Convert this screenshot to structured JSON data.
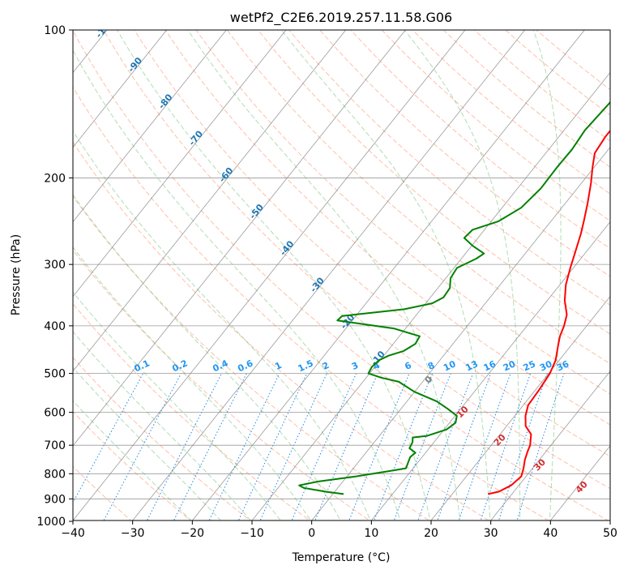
{
  "chart_data": {
    "type": "line",
    "title": "wetPf2_C2E6.2019.257.11.58.G06",
    "xlabel": "Temperature (°C)",
    "ylabel": "Pressure (hPa)",
    "xlim": [
      -40,
      50
    ],
    "ylim": [
      1050,
      100
    ],
    "y_scale": "log",
    "x_ticks": [
      -40,
      -30,
      -20,
      -10,
      0,
      10,
      20,
      30,
      40,
      50
    ],
    "y_ticks": [
      100,
      200,
      300,
      400,
      500,
      600,
      700,
      800,
      900,
      1000
    ],
    "grid": true,
    "series": [
      {
        "color": "#ff0000",
        "points": [
          [
            26,
            880
          ],
          [
            27.5,
            870
          ],
          [
            28.7,
            845
          ],
          [
            29.2,
            810
          ],
          [
            28.5,
            780
          ],
          [
            27.6,
            750
          ],
          [
            26.9,
            720
          ],
          [
            26.5,
            700
          ],
          [
            25.2,
            665
          ],
          [
            23.2,
            640
          ],
          [
            21.8,
            610
          ],
          [
            20.8,
            580
          ],
          [
            20.6,
            540
          ],
          [
            20.2,
            500
          ],
          [
            19.4,
            470
          ],
          [
            17.9,
            440
          ],
          [
            16.9,
            420
          ],
          [
            16.2,
            400
          ],
          [
            15.2,
            380
          ],
          [
            12.9,
            355
          ],
          [
            11,
            330
          ],
          [
            9.5,
            305
          ],
          [
            8,
            280
          ],
          [
            6.7,
            260
          ],
          [
            5.5,
            245
          ],
          [
            3.7,
            225
          ],
          [
            1.6,
            205
          ],
          [
            -0.3,
            190
          ],
          [
            -1.8,
            178
          ],
          [
            -2.2,
            165
          ],
          [
            -2.2,
            150
          ],
          [
            -3,
            140
          ],
          [
            -3.5,
            130
          ],
          [
            -3.3,
            120
          ],
          [
            -2.6,
            112
          ],
          [
            -1.2,
            105
          ],
          [
            0.4,
            100
          ]
        ]
      },
      {
        "color": "#008000",
        "points": [
          [
            1.8,
            880
          ],
          [
            -1.6,
            870
          ],
          [
            -5.7,
            855
          ],
          [
            -6.8,
            845
          ],
          [
            -4.2,
            830
          ],
          [
            1.5,
            810
          ],
          [
            6.4,
            790
          ],
          [
            8.8,
            780
          ],
          [
            8.5,
            765
          ],
          [
            8,
            740
          ],
          [
            8.3,
            725
          ],
          [
            6.7,
            710
          ],
          [
            6.4,
            690
          ],
          [
            5.8,
            675
          ],
          [
            8,
            670
          ],
          [
            10.4,
            650
          ],
          [
            11,
            630
          ],
          [
            10.3,
            610
          ],
          [
            7.8,
            590
          ],
          [
            5,
            570
          ],
          [
            0,
            545
          ],
          [
            -4,
            520
          ],
          [
            -7.5,
            510
          ],
          [
            -10.2,
            500
          ],
          [
            -10.5,
            485
          ],
          [
            -10.2,
            470
          ],
          [
            -9.2,
            460
          ],
          [
            -7.3,
            450
          ],
          [
            -6.3,
            435
          ],
          [
            -6.6,
            420
          ],
          [
            -12,
            405
          ],
          [
            -22.5,
            390
          ],
          [
            -22.3,
            382
          ],
          [
            -12.8,
            370
          ],
          [
            -8.9,
            360
          ],
          [
            -7.8,
            350
          ],
          [
            -8,
            335
          ],
          [
            -9.2,
            320
          ],
          [
            -9.5,
            305
          ],
          [
            -7.5,
            292
          ],
          [
            -6.9,
            285
          ],
          [
            -9.8,
            275
          ],
          [
            -12.3,
            265
          ],
          [
            -12,
            255
          ],
          [
            -8.8,
            245
          ],
          [
            -6.8,
            230
          ],
          [
            -6.1,
            210
          ],
          [
            -6.2,
            190
          ],
          [
            -6.1,
            175
          ],
          [
            -6.5,
            160
          ],
          [
            -6,
            140
          ],
          [
            -5,
            125
          ],
          [
            -4.5,
            115
          ],
          [
            -3.2,
            105
          ],
          [
            -2,
            100
          ]
        ]
      }
    ],
    "isotherm_dry_adiabat_labels": [
      "-100",
      "-90",
      "-80",
      "-70",
      "-60",
      "-50",
      "-40",
      "-30",
      "-20",
      "-10"
    ],
    "mixing_ratio_labels": [
      "0.1",
      "0.2",
      "0.4",
      "0.6",
      "1",
      "1.5",
      "2",
      "3",
      "4",
      "6",
      "8",
      "10",
      "13",
      "16",
      "20",
      "25",
      "30",
      "36"
    ],
    "moist_adiabat_labels": [
      "0",
      "10",
      "20",
      "30",
      "40"
    ],
    "colors": {
      "temperature": "#ff0000",
      "dewpoint": "#008000",
      "dry_adiabat": "#ff8a65",
      "moist_adiabat": "#66bb6a",
      "mixing_ratio": "#1e88e5",
      "isotherm": "#808080"
    }
  }
}
